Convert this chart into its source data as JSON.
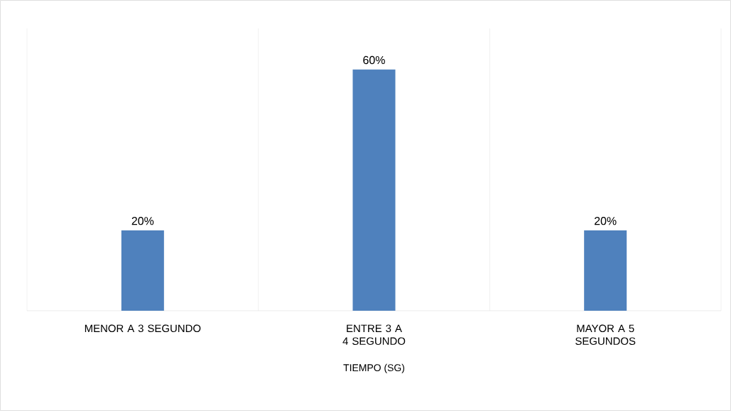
{
  "chart_data": {
    "type": "bar",
    "xlabel": "TIEMPO (SG)",
    "categories": [
      "MENOR A 3 SEGUNDO",
      "ENTRE 3 A 4 SEGUNDO",
      "MAYOR A 5 SEGUNDOS"
    ],
    "values": [
      20,
      60,
      20
    ],
    "color": "#4f81bd",
    "value_labels": [
      "20%",
      "60%",
      "20%"
    ],
    "grid": "x"
  }
}
